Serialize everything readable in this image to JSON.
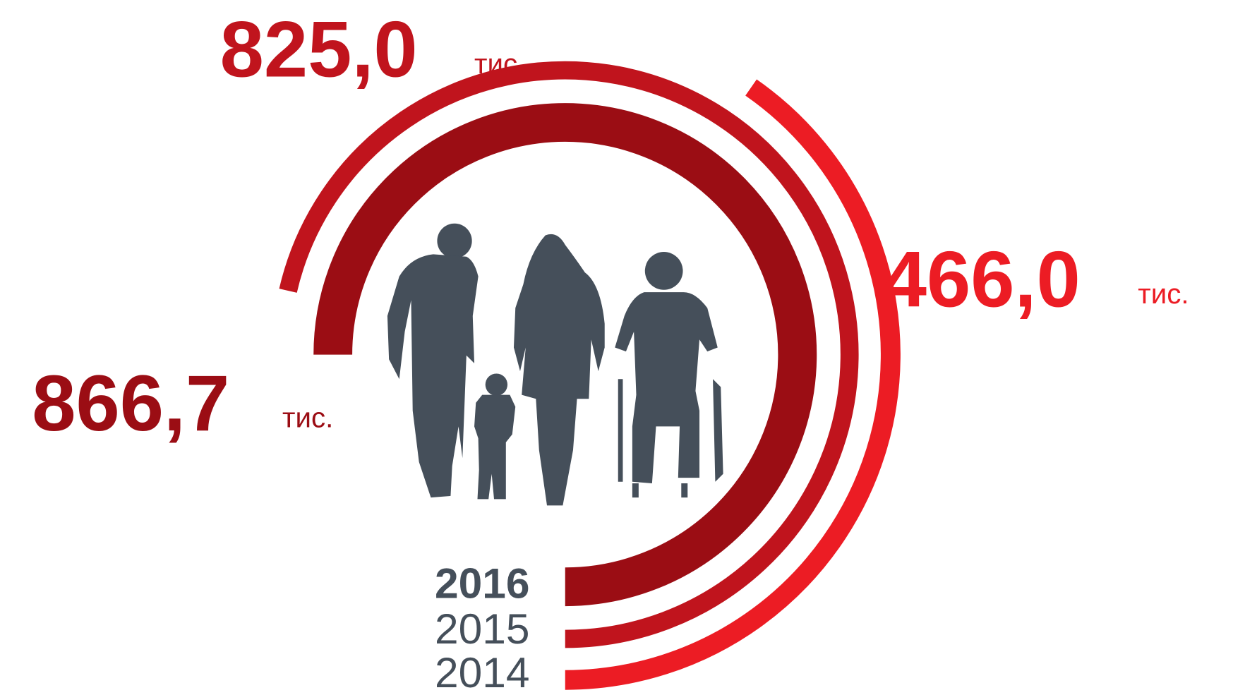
{
  "chart_data": {
    "type": "radial-bar",
    "categories": [
      "2016",
      "2015",
      "2014"
    ],
    "values": [
      866.7,
      825.0,
      466.0
    ],
    "value_labels": [
      "866,7",
      "825,0",
      "466,0"
    ],
    "unit": "тис.",
    "colors": [
      "#9b0d14",
      "#c0141d",
      "#ec1c24"
    ]
  }
}
